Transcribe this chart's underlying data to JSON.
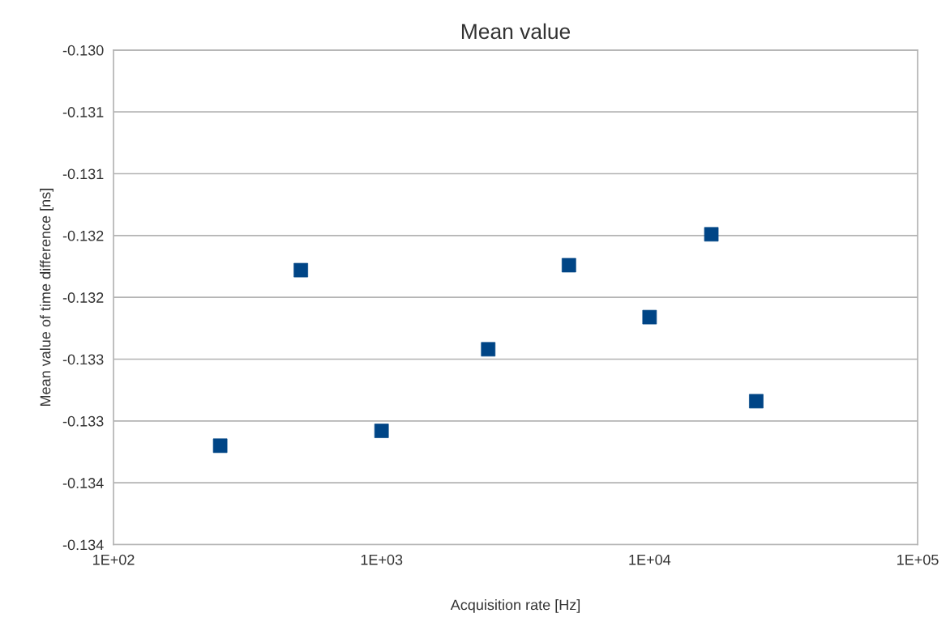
{
  "chart_data": {
    "type": "scatter",
    "title": "Mean value",
    "xlabel": "Acquisition rate [Hz]",
    "ylabel": "Mean value of time difference [ns]",
    "x": [
      250,
      500,
      1000,
      2500,
      5000,
      10000,
      17000,
      25000
    ],
    "series": [
      {
        "color": "#004586",
        "values": [
          -0.1332,
          -0.13178,
          -0.13308,
          -0.13242,
          -0.13174,
          -0.13216,
          -0.13149,
          -0.13284
        ]
      }
    ],
    "log": "x",
    "xlim": [
      100,
      100000
    ],
    "xticks": [
      {
        "value": 100,
        "label": "1E+02"
      },
      {
        "value": 1000,
        "label": "1E+03"
      },
      {
        "value": 10000,
        "label": "1E+04"
      },
      {
        "value": 100000,
        "label": "1E+05"
      }
    ],
    "ylim": [
      -0.134,
      -0.13
    ],
    "yticks": [
      {
        "value": -0.134,
        "label": "-0.134"
      },
      {
        "value": -0.1335,
        "label": "-0.134"
      },
      {
        "value": -0.133,
        "label": "-0.133"
      },
      {
        "value": -0.1325,
        "label": "-0.133"
      },
      {
        "value": -0.132,
        "label": "-0.132"
      },
      {
        "value": -0.1315,
        "label": "-0.132"
      },
      {
        "value": -0.131,
        "label": "-0.131"
      },
      {
        "value": -0.1305,
        "label": "-0.131"
      },
      {
        "value": -0.13,
        "label": "-0.130"
      }
    ],
    "grid": "y",
    "marker": "square"
  }
}
